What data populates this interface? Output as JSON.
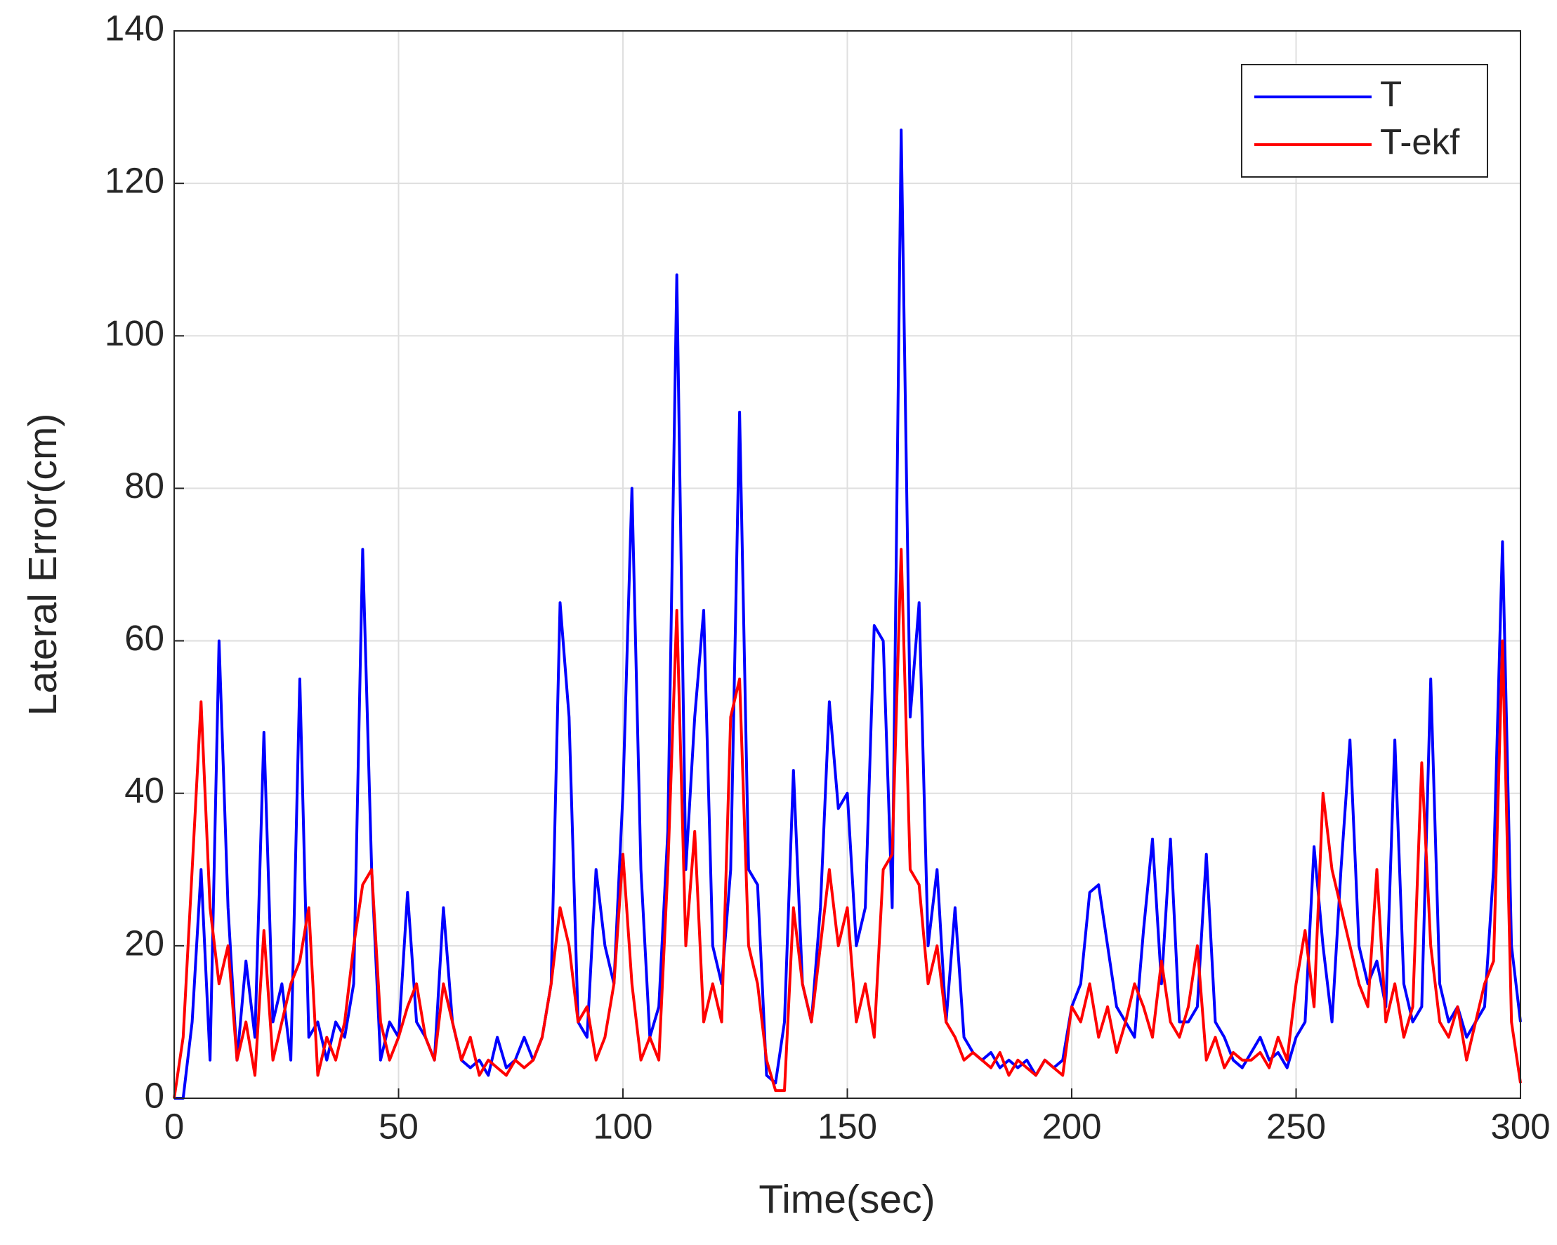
{
  "chart_data": {
    "type": "line",
    "x_label": "Time(sec)",
    "y_label": "Lateral Error(cm)",
    "x": [
      0,
      2,
      4,
      6,
      8,
      10,
      12,
      14,
      16,
      18,
      20,
      22,
      24,
      26,
      28,
      30,
      32,
      34,
      36,
      38,
      40,
      42,
      44,
      46,
      48,
      50,
      52,
      54,
      56,
      58,
      60,
      62,
      64,
      66,
      68,
      70,
      72,
      74,
      76,
      78,
      80,
      82,
      84,
      86,
      88,
      90,
      92,
      94,
      96,
      98,
      100,
      102,
      104,
      106,
      108,
      110,
      112,
      114,
      116,
      118,
      120,
      122,
      124,
      126,
      128,
      130,
      132,
      134,
      136,
      138,
      140,
      142,
      144,
      146,
      148,
      150,
      152,
      154,
      156,
      158,
      160,
      162,
      164,
      166,
      168,
      170,
      172,
      174,
      176,
      178,
      180,
      182,
      184,
      186,
      188,
      190,
      192,
      194,
      196,
      198,
      200,
      202,
      204,
      206,
      208,
      210,
      212,
      214,
      216,
      218,
      220,
      222,
      224,
      226,
      228,
      230,
      232,
      234,
      236,
      238,
      240,
      242,
      244,
      246,
      248,
      250,
      252,
      254,
      256,
      258,
      260,
      262,
      264,
      266,
      268,
      270,
      272,
      274,
      276,
      278,
      280,
      282,
      284,
      286,
      288,
      290,
      292,
      294,
      296,
      298,
      300
    ],
    "series": [
      {
        "name": "T",
        "color": "#0000ff",
        "values": [
          0,
          0,
          10,
          30,
          5,
          60,
          25,
          5,
          18,
          8,
          48,
          10,
          15,
          5,
          55,
          8,
          10,
          5,
          10,
          8,
          15,
          72,
          30,
          5,
          10,
          8,
          27,
          10,
          8,
          5,
          25,
          10,
          5,
          4,
          5,
          3,
          8,
          4,
          5,
          8,
          5,
          8,
          15,
          65,
          50,
          10,
          8,
          30,
          20,
          15,
          40,
          80,
          30,
          8,
          12,
          35,
          108,
          30,
          50,
          64,
          20,
          15,
          30,
          90,
          30,
          28,
          3,
          2,
          10,
          43,
          15,
          10,
          25,
          52,
          38,
          40,
          20,
          25,
          62,
          60,
          25,
          127,
          50,
          65,
          20,
          30,
          10,
          25,
          8,
          6,
          5,
          6,
          4,
          5,
          4,
          5,
          3,
          5,
          4,
          5,
          12,
          15,
          27,
          28,
          20,
          12,
          10,
          8,
          22,
          34,
          15,
          34,
          10,
          10,
          12,
          32,
          10,
          8,
          5,
          4,
          6,
          8,
          5,
          6,
          4,
          8,
          10,
          33,
          20,
          10,
          30,
          47,
          20,
          15,
          18,
          12,
          47,
          15,
          10,
          12,
          55,
          15,
          10,
          12,
          8,
          10,
          12,
          30,
          73,
          20,
          10
        ]
      },
      {
        "name": "T-ekf",
        "color": "#ff0000",
        "values": [
          0,
          8,
          30,
          52,
          25,
          15,
          20,
          5,
          10,
          3,
          22,
          5,
          10,
          15,
          18,
          25,
          3,
          8,
          5,
          10,
          20,
          28,
          30,
          10,
          5,
          8,
          12,
          15,
          8,
          5,
          15,
          10,
          5,
          8,
          3,
          5,
          4,
          3,
          5,
          4,
          5,
          8,
          15,
          25,
          20,
          10,
          12,
          5,
          8,
          15,
          32,
          15,
          5,
          8,
          5,
          30,
          64,
          20,
          35,
          10,
          15,
          10,
          50,
          55,
          20,
          15,
          5,
          1,
          1,
          25,
          15,
          10,
          20,
          30,
          20,
          25,
          10,
          15,
          8,
          30,
          32,
          72,
          30,
          28,
          15,
          20,
          10,
          8,
          5,
          6,
          5,
          4,
          6,
          3,
          5,
          4,
          3,
          5,
          4,
          3,
          12,
          10,
          15,
          8,
          12,
          6,
          10,
          15,
          12,
          8,
          18,
          10,
          8,
          12,
          20,
          5,
          8,
          4,
          6,
          5,
          5,
          6,
          4,
          8,
          5,
          15,
          22,
          12,
          40,
          30,
          25,
          20,
          15,
          12,
          30,
          10,
          15,
          8,
          12,
          44,
          20,
          10,
          8,
          12,
          5,
          10,
          15,
          18,
          60,
          10,
          2
        ]
      }
    ],
    "xlim": [
      0,
      300
    ],
    "xticks": [
      0,
      50,
      100,
      150,
      200,
      250,
      300
    ],
    "ylim": [
      0,
      140
    ],
    "yticks": [
      0,
      20,
      40,
      60,
      80,
      100,
      120,
      140
    ],
    "grid": true,
    "legend": "upper right"
  }
}
